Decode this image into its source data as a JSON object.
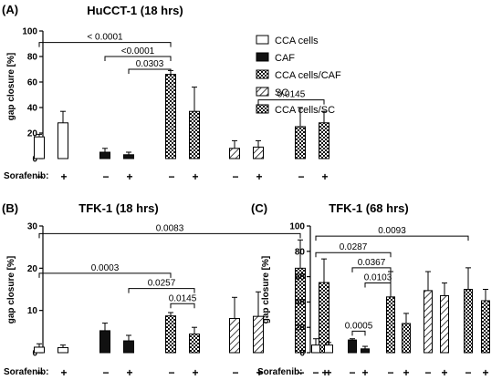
{
  "styles": {
    "CCA cells": "open",
    "CAF": "solid",
    "CCA cells/CAF": "checker",
    "SC": "hatch",
    "CCA cells/SC": "checker"
  },
  "legend": {
    "items": [
      "CCA cells",
      "CAF",
      "CCA cells/CAF",
      "SC",
      "CCA cells/SC"
    ]
  },
  "chart_data": [
    {
      "type": "bar",
      "panel_label": "(A)",
      "title": "HuCCT-1 (18 hrs)",
      "ylabel": "gap closure [%]",
      "ylim": [
        0,
        100
      ],
      "yticks": [
        "0",
        "20",
        "40",
        "60",
        "80",
        "100"
      ],
      "treatment_label": "Sorafenib:",
      "treatment_signs": [
        "−",
        "+",
        "−",
        "+",
        "−",
        "+",
        "−",
        "+",
        "−",
        "+"
      ],
      "groups": [
        "CCA cells",
        "CAF",
        "CCA cells/CAF",
        "SC",
        "CCA cells/SC"
      ],
      "bars": [
        {
          "group": "CCA cells",
          "sorafenib": "−",
          "value": 17,
          "error": 2
        },
        {
          "group": "CCA cells",
          "sorafenib": "+",
          "value": 28,
          "error": 9
        },
        {
          "group": "CAF",
          "sorafenib": "−",
          "value": 5,
          "error": 3
        },
        {
          "group": "CAF",
          "sorafenib": "+",
          "value": 3,
          "error": 2
        },
        {
          "group": "CCA cells/CAF",
          "sorafenib": "−",
          "value": 66,
          "error": 3
        },
        {
          "group": "CCA cells/CAF",
          "sorafenib": "+",
          "value": 37,
          "error": 19
        },
        {
          "group": "SC",
          "sorafenib": "−",
          "value": 8,
          "error": 6
        },
        {
          "group": "SC",
          "sorafenib": "+",
          "value": 9,
          "error": 5
        },
        {
          "group": "CCA cells/SC",
          "sorafenib": "−",
          "value": 25,
          "error": 15
        },
        {
          "group": "CCA cells/SC",
          "sorafenib": "+",
          "value": 28,
          "error": 9
        }
      ],
      "comparisons": [
        {
          "from_bar": 1,
          "to_bar": 5,
          "label": "< 0.0001",
          "y": 91
        },
        {
          "from_bar": 3,
          "to_bar": 5,
          "label": "<0.0001",
          "y": 80
        },
        {
          "from_bar": 4,
          "to_bar": 5,
          "label": "0.0303",
          "y": 70
        },
        {
          "from_bar": 8,
          "to_bar": 10,
          "label": "0.0145",
          "y": 46
        }
      ]
    },
    {
      "type": "bar",
      "panel_label": "(B)",
      "title": "TFK-1 (18 hrs)",
      "ylabel": "gap closure [%]",
      "ylim": [
        0,
        30
      ],
      "yticks": [
        "0",
        "10",
        "20",
        "30"
      ],
      "treatment_label": "Sorafenib:",
      "treatment_signs": [
        "−",
        "+",
        "−",
        "+",
        "−",
        "+",
        "−",
        "+",
        "−",
        "+"
      ],
      "groups": [
        "CCA cells",
        "CAF",
        "CCA cells/CAF",
        "SC",
        "CCA cells/SC"
      ],
      "bars": [
        {
          "group": "CCA cells",
          "sorafenib": "−",
          "value": 1.3,
          "error": 0.8
        },
        {
          "group": "CCA cells",
          "sorafenib": "+",
          "value": 1.2,
          "error": 0.6
        },
        {
          "group": "CAF",
          "sorafenib": "−",
          "value": 5.2,
          "error": 1.8
        },
        {
          "group": "CAF",
          "sorafenib": "+",
          "value": 2.8,
          "error": 1.3
        },
        {
          "group": "CCA cells/CAF",
          "sorafenib": "−",
          "value": 8.7,
          "error": 0.8
        },
        {
          "group": "CCA cells/CAF",
          "sorafenib": "+",
          "value": 4.4,
          "error": 1.6
        },
        {
          "group": "SC",
          "sorafenib": "−",
          "value": 8.1,
          "error": 5
        },
        {
          "group": "SC",
          "sorafenib": "+",
          "value": 8.6,
          "error": 5.8
        },
        {
          "group": "CCA cells/SC",
          "sorafenib": "−",
          "value": 20,
          "error": 6.7
        },
        {
          "group": "CCA cells/SC",
          "sorafenib": "+",
          "value": 16.6,
          "error": 5.6
        }
      ],
      "comparisons": [
        {
          "from_bar": 1,
          "to_bar": 9,
          "label": "0.0083",
          "y": 28.2
        },
        {
          "from_bar": 1,
          "to_bar": 5,
          "label": "0.0003",
          "y": 18.8
        },
        {
          "from_bar": 4,
          "to_bar": 6,
          "label": "0.0257",
          "y": 15.2
        },
        {
          "from_bar": 5,
          "to_bar": 6,
          "label": "0.0145",
          "y": 11.6
        }
      ]
    },
    {
      "type": "bar",
      "panel_label": "(C)",
      "title": "TFK-1 (68 hrs)",
      "ylabel": "gap closure [%]",
      "ylim": [
        0,
        100
      ],
      "yticks": [
        "0",
        "20",
        "40",
        "60",
        "80",
        "100"
      ],
      "treatment_label": "Sorafenib:",
      "treatment_signs": [
        "−",
        "+",
        "−",
        "+",
        "−",
        "+",
        "−",
        "+",
        "−",
        "+"
      ],
      "groups": [
        "CCA cells",
        "CAF",
        "CCA cells/CAF",
        "SC",
        "CCA cells/SC"
      ],
      "bars": [
        {
          "group": "CCA cells",
          "sorafenib": "−",
          "value": 6,
          "error": 5
        },
        {
          "group": "CCA cells",
          "sorafenib": "+",
          "value": 6,
          "error": 2
        },
        {
          "group": "CAF",
          "sorafenib": "−",
          "value": 10,
          "error": 1
        },
        {
          "group": "CAF",
          "sorafenib": "+",
          "value": 3,
          "error": 2
        },
        {
          "group": "CCA cells/CAF",
          "sorafenib": "−",
          "value": 44,
          "error": 20
        },
        {
          "group": "CCA cells/CAF",
          "sorafenib": "+",
          "value": 23,
          "error": 8
        },
        {
          "group": "SC",
          "sorafenib": "−",
          "value": 49,
          "error": 15
        },
        {
          "group": "SC",
          "sorafenib": "+",
          "value": 45,
          "error": 10
        },
        {
          "group": "CCA cells/SC",
          "sorafenib": "−",
          "value": 50,
          "error": 17
        },
        {
          "group": "CCA cells/SC",
          "sorafenib": "+",
          "value": 41,
          "error": 9
        }
      ],
      "comparisons": [
        {
          "from_bar": 1,
          "to_bar": 9,
          "label": "0.0093",
          "y": 92
        },
        {
          "from_bar": 1,
          "to_bar": 5,
          "label": "0.0287",
          "y": 79
        },
        {
          "from_bar": 3,
          "to_bar": 5,
          "label": "0.0367",
          "y": 67
        },
        {
          "from_bar": 4,
          "to_bar": 5,
          "label": "0.0103",
          "y": 55
        },
        {
          "from_bar": 3,
          "to_bar": 4,
          "label": "0.0005",
          "y": 17
        }
      ]
    }
  ]
}
